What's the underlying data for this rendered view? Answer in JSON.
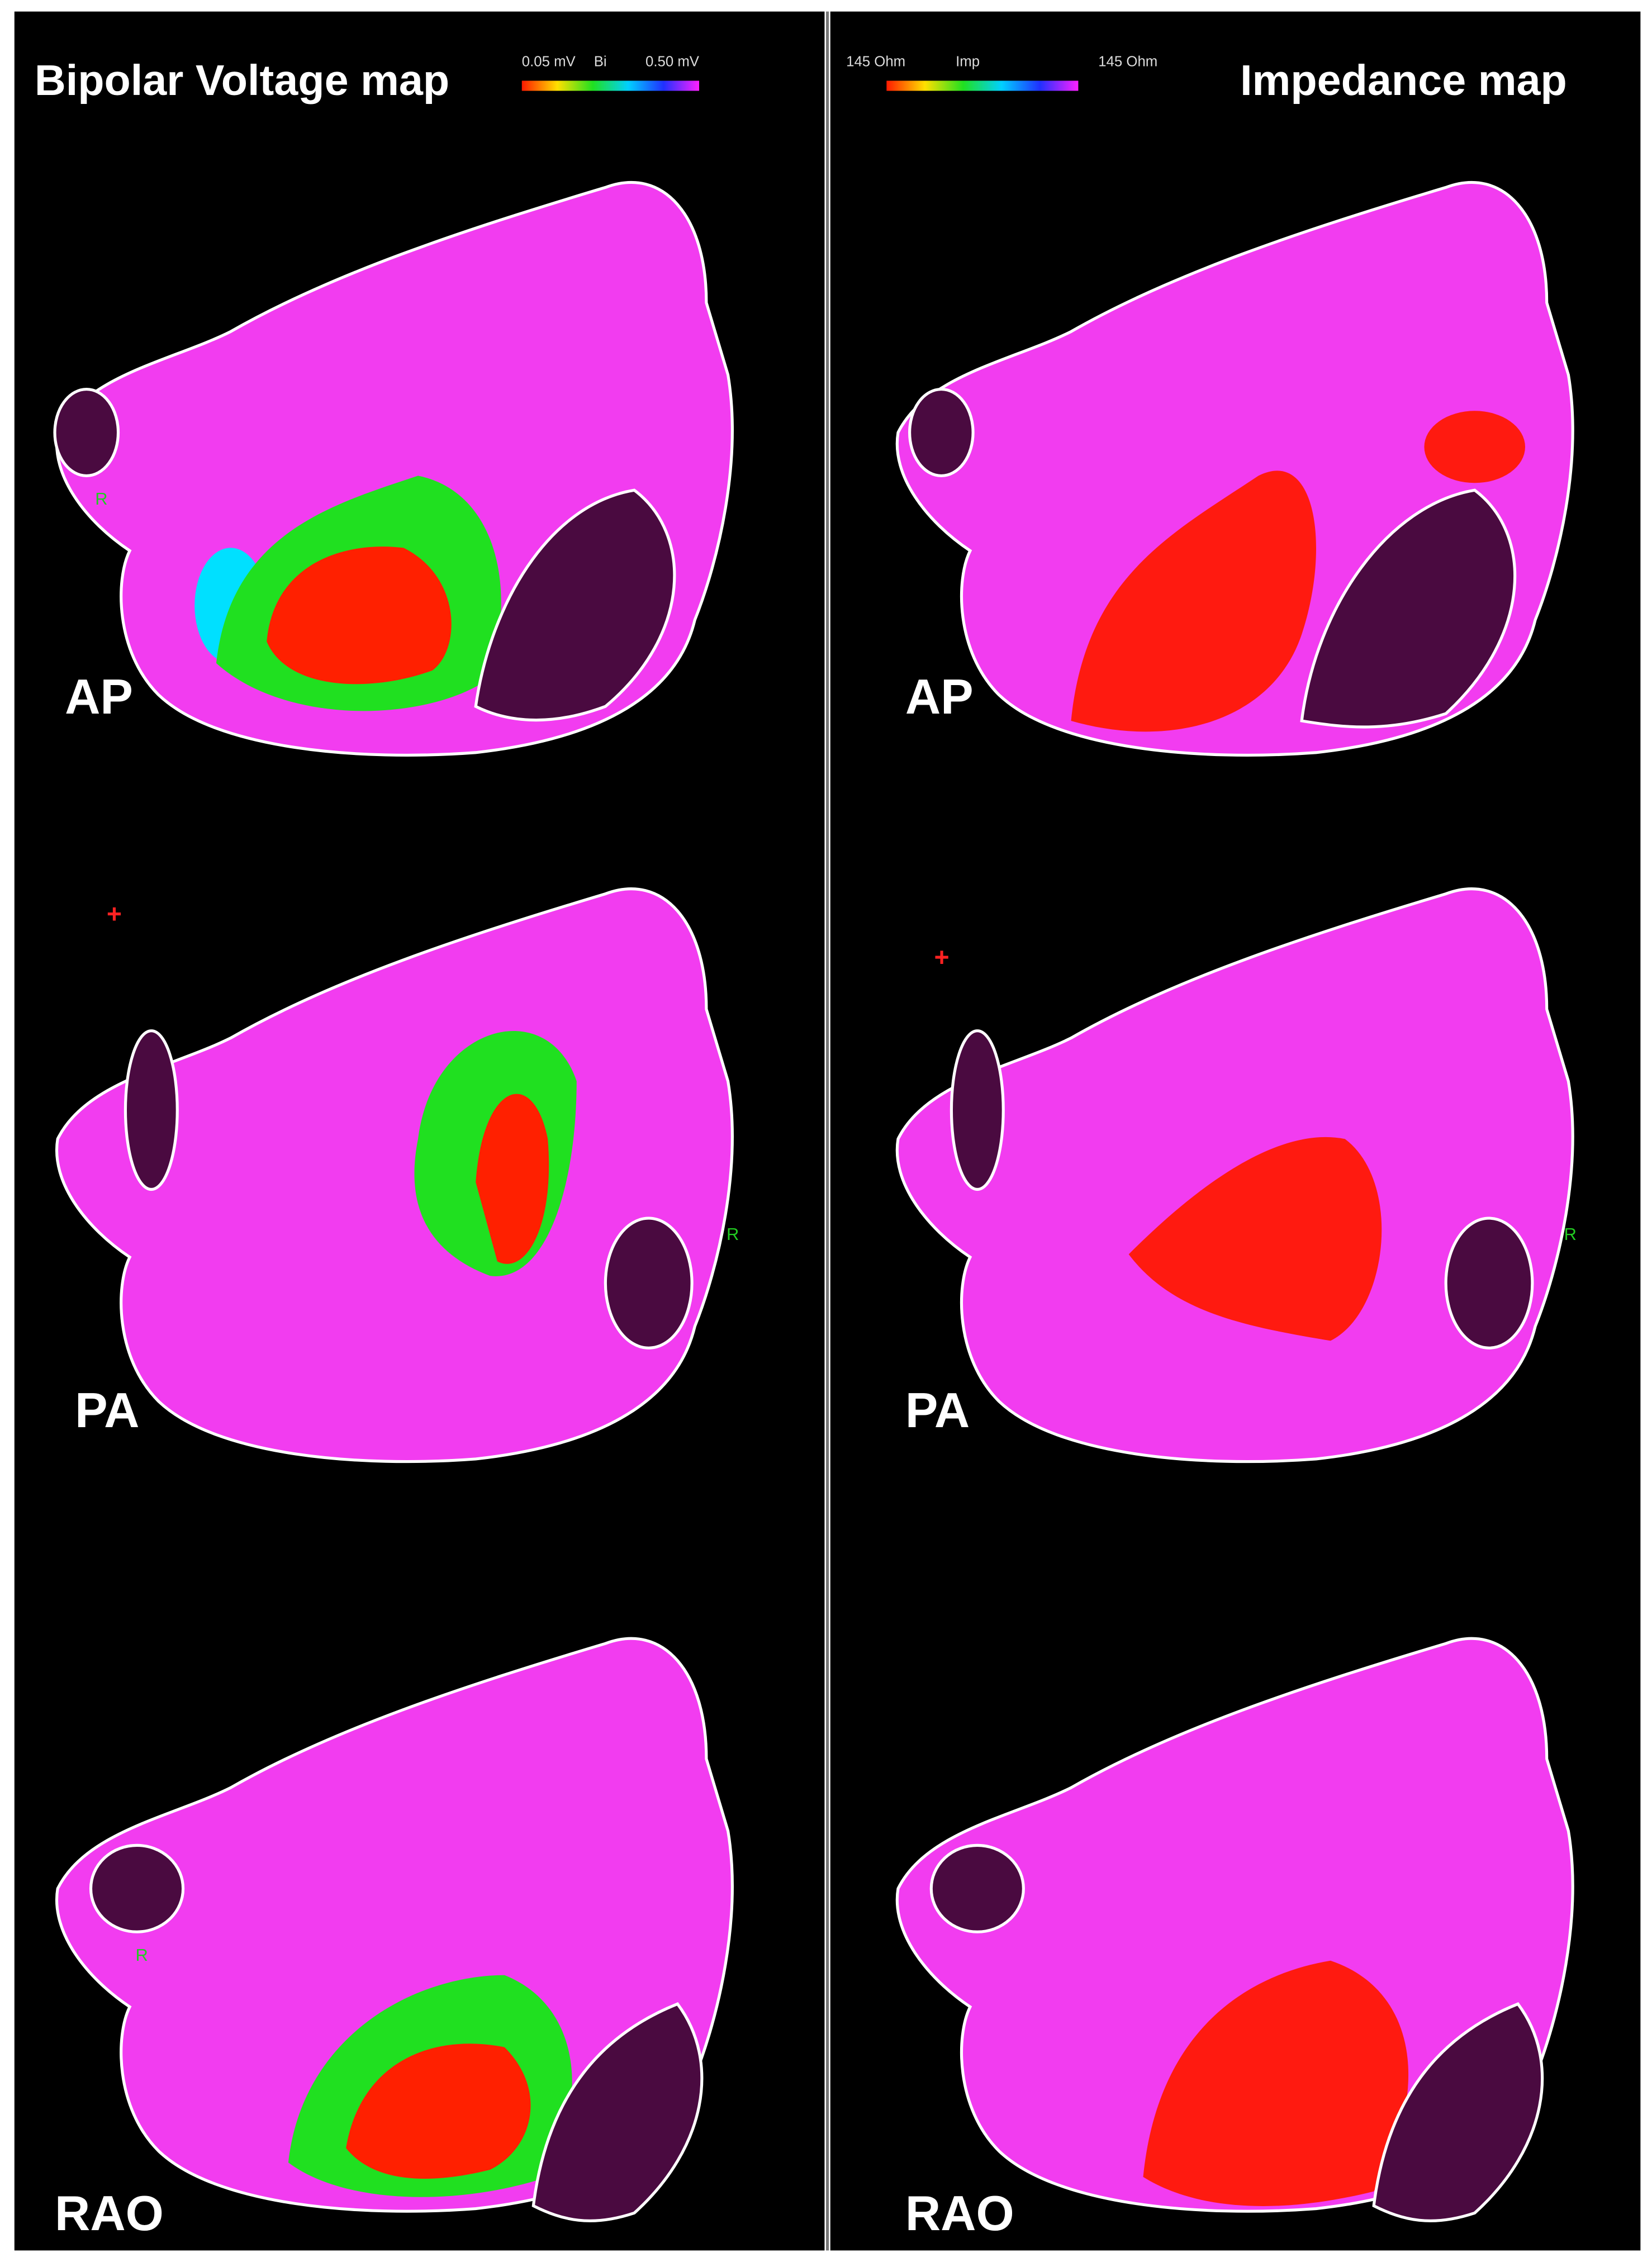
{
  "left": {
    "title": "Bipolar Voltage map",
    "colorbar": {
      "min_label": "0.05 mV",
      "name": "Bi",
      "max_label": "0.50 mV"
    },
    "views": [
      "AP",
      "PA",
      "RAO"
    ],
    "markers": [
      "R",
      "+",
      "R",
      "R"
    ]
  },
  "right": {
    "title": "Impedance map",
    "colorbar": {
      "min_label": "145 Ohm",
      "name": "Imp",
      "max_label": "145 Ohm"
    },
    "views": [
      "AP",
      "PA",
      "RAO"
    ],
    "markers": [
      "+",
      "R"
    ]
  }
}
